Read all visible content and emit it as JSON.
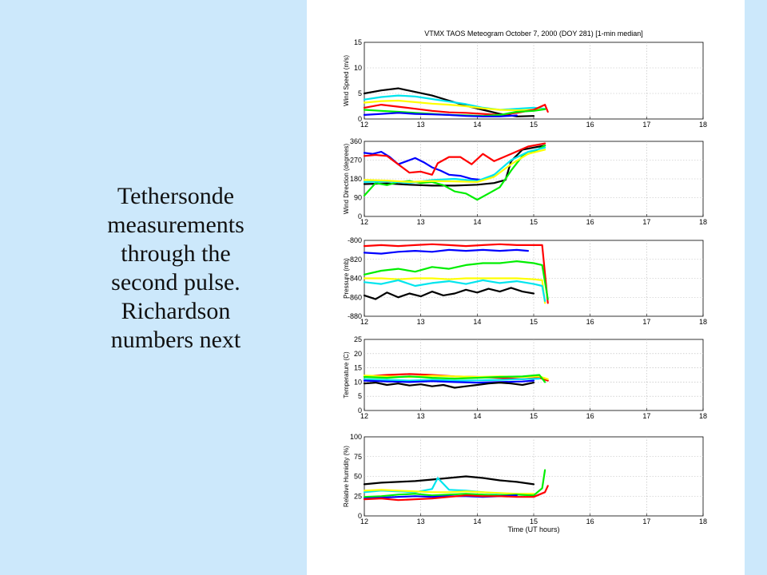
{
  "slide": {
    "caption_lines": [
      "Tethersonde",
      "measurements",
      "through the",
      "second pulse.",
      "Richardson",
      "numbers next"
    ],
    "background_color": "#cce8fb",
    "panel_color": "#ffffff"
  },
  "chart_data": {
    "title": "VTMX TAOS Meteogram   October 7, 2000 (DOY 281) [1-min median]",
    "xlabel": "Time (UT hours)",
    "xlim": [
      12,
      18
    ],
    "xticks": [
      12,
      13,
      14,
      15,
      16,
      17,
      18
    ],
    "series_colors": [
      "#000000",
      "#0000ff",
      "#ff0000",
      "#00ee00",
      "#00e5ee",
      "#ffff00"
    ],
    "panels": [
      {
        "type": "line",
        "ylabel": "Wind Speed (m/s)",
        "ylim": [
          0,
          15
        ],
        "yticks": [
          0,
          5,
          10,
          15
        ],
        "series": [
          {
            "color": "#000000",
            "x": [
              12.0,
              12.3,
              12.6,
              12.9,
              13.2,
              13.5,
              13.8,
              14.1,
              14.4,
              14.7,
              15.0
            ],
            "y": [
              5.0,
              5.6,
              6.0,
              5.3,
              4.6,
              3.6,
              2.6,
              1.8,
              1.0,
              0.5,
              0.6
            ]
          },
          {
            "color": "#00e5ee",
            "x": [
              12.0,
              12.3,
              12.6,
              12.9,
              13.2,
              13.5,
              13.8,
              14.1,
              14.4,
              14.7,
              15.0,
              15.2
            ],
            "y": [
              3.8,
              4.3,
              4.6,
              4.4,
              3.9,
              3.4,
              2.9,
              2.2,
              1.8,
              2.0,
              2.2,
              2.0
            ]
          },
          {
            "color": "#ffff00",
            "x": [
              12.0,
              12.3,
              12.6,
              12.9,
              13.2,
              13.5,
              13.8,
              14.1,
              14.4,
              14.7,
              15.0,
              15.2
            ],
            "y": [
              3.2,
              3.5,
              3.6,
              3.3,
              3.0,
              2.8,
              2.5,
              2.1,
              1.8,
              1.7,
              1.8,
              1.9
            ]
          },
          {
            "color": "#ff0000",
            "x": [
              12.0,
              12.3,
              12.6,
              12.9,
              13.2,
              13.5,
              13.8,
              14.1,
              14.4,
              14.7,
              15.0,
              15.2,
              15.25
            ],
            "y": [
              2.2,
              2.8,
              2.4,
              2.0,
              1.6,
              1.3,
              1.2,
              1.0,
              0.8,
              1.2,
              1.8,
              2.8,
              1.4
            ]
          },
          {
            "color": "#00ee00",
            "x": [
              12.0,
              12.3,
              12.6,
              12.9,
              13.2,
              13.5,
              13.8,
              14.1,
              14.4,
              14.7,
              15.0,
              15.2
            ],
            "y": [
              1.8,
              1.6,
              1.4,
              1.2,
              1.0,
              0.8,
              0.7,
              0.6,
              0.8,
              1.4,
              1.6,
              1.9
            ]
          },
          {
            "color": "#0000ff",
            "x": [
              12.0,
              12.3,
              12.6,
              12.9,
              13.2,
              13.5,
              13.8,
              14.1,
              14.4,
              14.7
            ],
            "y": [
              0.8,
              1.0,
              1.2,
              1.0,
              0.9,
              0.8,
              0.6,
              0.5,
              0.5,
              0.7
            ]
          }
        ]
      },
      {
        "type": "line",
        "ylabel": "Wind Direction (degrees)",
        "ylim": [
          0,
          360
        ],
        "yticks": [
          0,
          90,
          180,
          270,
          360
        ],
        "series": [
          {
            "color": "#000000",
            "x": [
              12.0,
              12.4,
              12.8,
              13.2,
              13.6,
              14.0,
              14.3,
              14.5,
              14.6,
              14.8,
              15.0,
              15.2
            ],
            "y": [
              155,
              158,
              152,
              148,
              148,
              152,
              160,
              175,
              265,
              320,
              330,
              340
            ]
          },
          {
            "color": "#0000ff",
            "x": [
              12.0,
              12.15,
              12.3,
              12.45,
              12.6,
              12.75,
              12.9,
              13.05,
              13.2,
              13.35,
              13.5,
              13.7,
              13.9,
              14.1,
              14.3
            ],
            "y": [
              305,
              300,
              310,
              285,
              250,
              265,
              280,
              260,
              235,
              220,
              200,
              195,
              180,
              175,
              200
            ]
          },
          {
            "color": "#ff0000",
            "x": [
              12.0,
              12.2,
              12.4,
              12.6,
              12.8,
              13.0,
              13.2,
              13.3,
              13.5,
              13.7,
              13.9,
              14.1,
              14.3,
              14.6,
              14.9,
              15.2
            ],
            "y": [
              290,
              295,
              290,
              250,
              210,
              215,
              200,
              255,
              285,
              285,
              250,
              300,
              265,
              300,
              335,
              350
            ]
          },
          {
            "color": "#00ee00",
            "x": [
              12.0,
              12.2,
              12.4,
              12.6,
              12.8,
              13.0,
              13.2,
              13.4,
              13.6,
              13.8,
              14.0,
              14.2,
              14.4,
              14.6,
              14.8,
              15.0,
              15.2
            ],
            "y": [
              100,
              160,
              150,
              165,
              170,
              160,
              165,
              150,
              120,
              110,
              80,
              110,
              140,
              220,
              290,
              310,
              340
            ]
          },
          {
            "color": "#00e5ee",
            "x": [
              12.0,
              12.4,
              12.8,
              13.2,
              13.6,
              14.0,
              14.3,
              14.6,
              14.9,
              15.2
            ],
            "y": [
              165,
              168,
              160,
              175,
              180,
              170,
              200,
              270,
              310,
              330
            ]
          },
          {
            "color": "#ffff00",
            "x": [
              12.0,
              12.4,
              12.8,
              13.2,
              13.6,
              14.0,
              14.3,
              14.6,
              14.9,
              15.2
            ],
            "y": [
              175,
              172,
              165,
              170,
              168,
              165,
              190,
              250,
              300,
              320
            ]
          }
        ]
      },
      {
        "type": "line",
        "ylabel": "Pressure (mb)",
        "ylim": [
          -880,
          -800
        ],
        "yticks": [
          -800,
          -820,
          -840,
          -860,
          -880
        ],
        "series": [
          {
            "color": "#ff0000",
            "x": [
              12.0,
              12.3,
              12.6,
              12.9,
              13.2,
              13.5,
              13.8,
              14.1,
              14.4,
              14.7,
              15.0,
              15.15,
              15.25
            ],
            "y": [
              -806,
              -805,
              -806,
              -805,
              -804,
              -805,
              -806,
              -805,
              -804,
              -805,
              -805,
              -805,
              -866
            ]
          },
          {
            "color": "#0000ff",
            "x": [
              12.0,
              12.3,
              12.6,
              12.9,
              13.2,
              13.5,
              13.8,
              14.1,
              14.4,
              14.7,
              14.9
            ],
            "y": [
              -813,
              -814,
              -812,
              -811,
              -812,
              -810,
              -811,
              -810,
              -811,
              -810,
              -811
            ]
          },
          {
            "color": "#00ee00",
            "x": [
              12.0,
              12.3,
              12.6,
              12.9,
              13.2,
              13.5,
              13.8,
              14.1,
              14.4,
              14.7,
              15.0,
              15.15,
              15.25
            ],
            "y": [
              -836,
              -832,
              -830,
              -833,
              -828,
              -830,
              -826,
              -824,
              -824,
              -822,
              -824,
              -826,
              -862
            ]
          },
          {
            "color": "#ffff00",
            "x": [
              12.0,
              12.3,
              12.6,
              12.9,
              13.2,
              13.5,
              13.8,
              14.1,
              14.4,
              14.7,
              15.0,
              15.15,
              15.2
            ],
            "y": [
              -840,
              -840,
              -841,
              -840,
              -840,
              -841,
              -840,
              -840,
              -840,
              -840,
              -841,
              -842,
              -866
            ]
          },
          {
            "color": "#00e5ee",
            "x": [
              12.0,
              12.3,
              12.6,
              12.9,
              13.2,
              13.5,
              13.8,
              14.1,
              14.4,
              14.7,
              15.0,
              15.15,
              15.2
            ],
            "y": [
              -844,
              -846,
              -842,
              -848,
              -845,
              -843,
              -846,
              -842,
              -845,
              -843,
              -846,
              -848,
              -864
            ]
          },
          {
            "color": "#000000",
            "x": [
              12.0,
              12.2,
              12.4,
              12.6,
              12.8,
              13.0,
              13.2,
              13.4,
              13.6,
              13.8,
              14.0,
              14.2,
              14.4,
              14.6,
              14.8,
              15.0
            ],
            "y": [
              -858,
              -862,
              -855,
              -860,
              -856,
              -859,
              -854,
              -858,
              -856,
              -852,
              -855,
              -851,
              -854,
              -850,
              -854,
              -856
            ]
          }
        ]
      },
      {
        "type": "line",
        "ylabel": "Temperature (C)",
        "ylim": [
          0,
          25
        ],
        "yticks": [
          0,
          5,
          10,
          15,
          20,
          25
        ],
        "series": [
          {
            "color": "#ff0000",
            "x": [
              12.0,
              12.4,
              12.8,
              13.2,
              13.6,
              14.0,
              14.4,
              14.8,
              15.1,
              15.25
            ],
            "y": [
              12.0,
              12.5,
              12.8,
              12.5,
              12.0,
              11.8,
              11.5,
              11.0,
              11.5,
              10.5
            ]
          },
          {
            "color": "#ffff00",
            "x": [
              12.0,
              12.4,
              12.8,
              13.2,
              13.6,
              14.0,
              14.4,
              14.8,
              15.1,
              15.25
            ],
            "y": [
              12.3,
              12.0,
              11.8,
              12.2,
              12.0,
              11.8,
              12.0,
              11.8,
              12.0,
              11.0
            ]
          },
          {
            "color": "#00ee00",
            "x": [
              12.0,
              12.4,
              12.8,
              13.2,
              13.6,
              14.0,
              14.4,
              14.8,
              15.1,
              15.2
            ],
            "y": [
              11.8,
              11.5,
              12.0,
              11.5,
              11.2,
              11.5,
              11.8,
              12.0,
              12.5,
              10.0
            ]
          },
          {
            "color": "#00e5ee",
            "x": [
              12.0,
              12.4,
              12.8,
              13.2,
              13.6,
              14.0,
              14.4,
              14.8,
              15.1
            ],
            "y": [
              11.0,
              10.8,
              10.5,
              10.8,
              10.5,
              10.6,
              10.8,
              11.0,
              11.2
            ]
          },
          {
            "color": "#0000ff",
            "x": [
              12.0,
              12.4,
              12.8,
              13.2,
              13.6,
              14.0,
              14.4,
              14.8,
              15.0
            ],
            "y": [
              10.5,
              10.2,
              10.0,
              10.3,
              10.0,
              9.8,
              10.0,
              10.2,
              10.5
            ]
          },
          {
            "color": "#000000",
            "x": [
              12.0,
              12.2,
              12.4,
              12.6,
              12.8,
              13.0,
              13.2,
              13.4,
              13.6,
              13.8,
              14.0,
              14.2,
              14.4,
              14.6,
              14.8,
              15.0
            ],
            "y": [
              9.5,
              9.8,
              9.0,
              9.5,
              8.8,
              9.2,
              8.5,
              9.0,
              8.0,
              8.5,
              9.0,
              9.5,
              9.8,
              9.5,
              9.0,
              9.8
            ]
          }
        ]
      },
      {
        "type": "line",
        "ylabel": "Relative Humidity (%)",
        "ylim": [
          0,
          100
        ],
        "yticks": [
          0,
          25,
          50,
          75,
          100
        ],
        "series": [
          {
            "color": "#000000",
            "x": [
              12.0,
              12.3,
              12.6,
              12.9,
              13.2,
              13.5,
              13.8,
              14.1,
              14.4,
              14.7,
              15.0
            ],
            "y": [
              40,
              42,
              43,
              44,
              46,
              48,
              50,
              48,
              45,
              43,
              40
            ]
          },
          {
            "color": "#00e5ee",
            "x": [
              12.0,
              12.3,
              12.6,
              12.9,
              13.2,
              13.3,
              13.5,
              13.8,
              14.1,
              14.4,
              14.7,
              15.0
            ],
            "y": [
              30,
              32,
              31,
              30,
              34,
              48,
              33,
              32,
              30,
              28,
              27,
              26
            ]
          },
          {
            "color": "#ffff00",
            "x": [
              12.0,
              12.3,
              12.6,
              12.9,
              13.2,
              13.5,
              13.8,
              14.1,
              14.4,
              14.7,
              15.0
            ],
            "y": [
              32,
              33,
              32,
              31,
              30,
              30,
              31,
              30,
              29,
              28,
              28
            ]
          },
          {
            "color": "#00ee00",
            "x": [
              12.0,
              12.3,
              12.6,
              12.9,
              13.2,
              13.5,
              13.8,
              14.1,
              14.4,
              14.7,
              15.0,
              15.15,
              15.2
            ],
            "y": [
              24,
              25,
              27,
              28,
              26,
              27,
              28,
              27,
              26,
              27,
              26,
              35,
              58
            ]
          },
          {
            "color": "#0000ff",
            "x": [
              12.0,
              12.3,
              12.6,
              12.9,
              13.2,
              13.5,
              13.8,
              14.1,
              14.4,
              14.7
            ],
            "y": [
              22,
              23,
              24,
              25,
              24,
              25,
              25,
              24,
              25,
              26
            ]
          },
          {
            "color": "#ff0000",
            "x": [
              12.0,
              12.3,
              12.6,
              12.9,
              13.2,
              13.5,
              13.8,
              14.1,
              14.4,
              14.7,
              15.0,
              15.2,
              15.25
            ],
            "y": [
              21,
              22,
              20,
              21,
              22,
              24,
              26,
              25,
              25,
              24,
              24,
              30,
              38
            ]
          }
        ]
      }
    ]
  }
}
